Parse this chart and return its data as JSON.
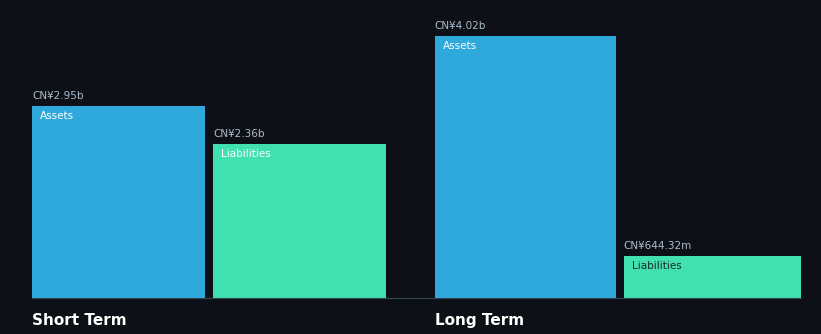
{
  "background_color": "#0d1117",
  "short_term": {
    "assets_value": 2.95,
    "liabilities_value": 2.36,
    "assets_label": "CN¥2.95b",
    "liabilities_label": "CN¥2.36b",
    "assets_text": "Assets",
    "liabilities_text": "Liabilities",
    "title": "Short Term"
  },
  "long_term": {
    "assets_value": 4.02,
    "liabilities_value": 0.64432,
    "assets_label": "CN¥4.02b",
    "liabilities_label": "CN¥644.32m",
    "assets_text": "Assets",
    "liabilities_text": "Liabilities",
    "title": "Long Term"
  },
  "assets_color": "#2fa8dc",
  "liabilities_color": "#40e0b0",
  "text_color": "#ffffff",
  "label_color": "#aabbcc",
  "max_value": 4.02
}
